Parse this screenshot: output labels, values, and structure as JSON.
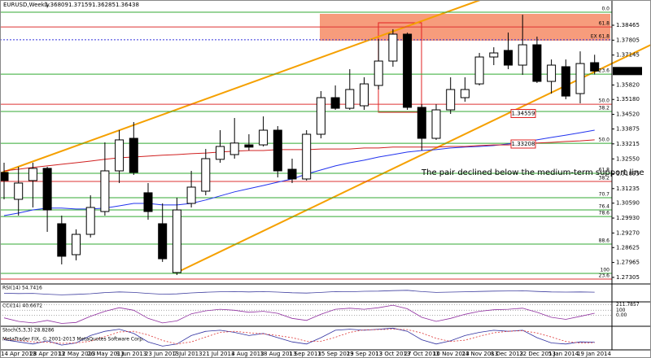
{
  "chart_data": {
    "type": "candlestick",
    "title": "EURUSD,Weekly",
    "categories": [
      "14 Apr 2013",
      null,
      "28 Apr 2013",
      null,
      "12 May 2013",
      null,
      "26 May 2013",
      null,
      "9 Jun 2013",
      null,
      "23 Jun 2013",
      null,
      "7 Jul 2013",
      null,
      "21 Jul 2013",
      null,
      "4 Aug 2013",
      null,
      "18 Aug 2013",
      null,
      "1 Sep 2013",
      null,
      "15 Sep 2013",
      null,
      "29 Sep 2013",
      null,
      "13 Oct 2013",
      null,
      "27 Oct 2013",
      null,
      "10 Nov 2013",
      null,
      "24 Nov 2013",
      null,
      "8 Dec 2013",
      null,
      "22 Dec 2013",
      null,
      "5 Jan 2014",
      null,
      "19 Jan 2014",
      null
    ],
    "candles": [
      [
        1.3195,
        1.3238,
        1.3076,
        1.3159
      ],
      [
        1.3076,
        1.322,
        1.3004,
        1.3148
      ],
      [
        1.3159,
        1.3238,
        1.304,
        1.3213
      ],
      [
        1.3213,
        1.322,
        1.2932,
        1.3029
      ],
      [
        1.2968,
        1.3004,
        1.2788,
        1.2824
      ],
      [
        1.2831,
        1.2943,
        1.2806,
        1.2921
      ],
      [
        1.2921,
        1.3094,
        1.2907,
        1.304
      ],
      [
        1.3022,
        1.3328,
        1.3004,
        1.3202
      ],
      [
        1.3202,
        1.3382,
        1.3148,
        1.3339
      ],
      [
        1.3346,
        1.3418,
        1.3184,
        1.3195
      ],
      [
        1.3105,
        1.3148,
        1.2986,
        1.3022
      ],
      [
        1.2968,
        1.3058,
        1.2799,
        1.2813
      ],
      [
        1.2752,
        1.3083,
        1.2741,
        1.3029
      ],
      [
        1.3058,
        1.3202,
        1.304,
        1.313
      ],
      [
        1.3112,
        1.3299,
        1.3094,
        1.3256
      ],
      [
        1.3253,
        1.3382,
        1.3238,
        1.331
      ],
      [
        1.3274,
        1.3436,
        1.3256,
        1.3325
      ],
      [
        1.3317,
        1.3364,
        1.3292,
        1.3307
      ],
      [
        1.3317,
        1.3443,
        1.331,
        1.3382
      ],
      [
        1.3382,
        1.34,
        1.3173,
        1.3202
      ],
      [
        1.3209,
        1.3256,
        1.3148,
        1.3166
      ],
      [
        1.3166,
        1.3382,
        1.3159,
        1.3364
      ],
      [
        1.3364,
        1.3555,
        1.3346,
        1.3526
      ],
      [
        1.3526,
        1.358,
        1.3472,
        1.3479
      ],
      [
        1.3479,
        1.3652,
        1.3472,
        1.3562
      ],
      [
        1.349,
        1.3616,
        1.3472,
        1.3587
      ],
      [
        1.358,
        1.3785,
        1.3562,
        1.3688
      ],
      [
        1.3688,
        1.3829,
        1.3663,
        1.3807
      ],
      [
        1.3807,
        1.3814,
        1.3472,
        1.3483
      ],
      [
        1.3483,
        1.3497,
        1.3292,
        1.3346
      ],
      [
        1.3346,
        1.3497,
        1.3339,
        1.3472
      ],
      [
        1.3472,
        1.3616,
        1.3454,
        1.3562
      ],
      [
        1.3526,
        1.3616,
        1.3508,
        1.3562
      ],
      [
        1.3587,
        1.3724,
        1.358,
        1.3706
      ],
      [
        1.3706,
        1.3749,
        1.367,
        1.3724
      ],
      [
        1.3735,
        1.3814,
        1.3652,
        1.367
      ],
      [
        1.367,
        1.3893,
        1.3627,
        1.376
      ],
      [
        1.376,
        1.3796,
        1.3591,
        1.3598
      ],
      [
        1.3598,
        1.3695,
        1.3544,
        1.367
      ],
      [
        1.3663,
        1.3695,
        1.3519,
        1.3533
      ],
      [
        1.3544,
        1.3731,
        1.3501,
        1.3677
      ],
      [
        1.36809,
        1.37159,
        1.36285,
        1.36438
      ]
    ],
    "up_color": "#ffffff",
    "down_color": "#000000",
    "ylim": [
      1.2705,
      1.3951
    ],
    "yticks": [
      1.38465,
      1.37805,
      1.37145,
      {
        "value": 1.3582,
        "label": "1.35820"
      },
      {
        "value": 1.3518,
        "label": "1.35180"
      },
      {
        "value": 1.3452,
        "label": "1.34520"
      },
      1.33875,
      1.33215,
      {
        "value": 1.3255,
        "label": "1.32550"
      },
      1.31895,
      1.31235,
      {
        "value": 1.3059,
        "label": "1.30590"
      },
      {
        "value": 1.2993,
        "label": "1.29930"
      },
      {
        "value": 1.2927,
        "label": "1.29270"
      },
      1.28625,
      1.27965,
      1.27305
    ],
    "moving_averages": [
      {
        "color": "#2233ee",
        "values": [
          1.3004,
          1.3015,
          1.3029,
          1.3037,
          1.3037,
          1.3033,
          1.3033,
          1.3037,
          1.3047,
          1.3058,
          1.3058,
          1.3051,
          1.3051,
          1.3058,
          1.3073,
          1.3091,
          1.3109,
          1.3123,
          1.3137,
          1.3152,
          1.3166,
          1.3188,
          1.3206,
          1.3224,
          1.3238,
          1.3249,
          1.3263,
          1.3274,
          1.3285,
          1.3292,
          1.3296,
          1.3303,
          1.3307,
          1.331,
          1.3314,
          1.3321,
          1.3328,
          1.3339,
          1.335,
          1.336,
          1.3371,
          1.3382
        ]
      },
      {
        "color": "#d02020",
        "values": [
          1.3202,
          1.3209,
          1.3217,
          1.3224,
          1.3231,
          1.3238,
          1.3245,
          1.3253,
          1.326,
          1.3263,
          1.3267,
          1.3271,
          1.3274,
          1.3278,
          1.3281,
          1.3285,
          1.3289,
          1.3292,
          1.3292,
          1.3296,
          1.3296,
          1.3296,
          1.3299,
          1.3299,
          1.3299,
          1.3303,
          1.3303,
          1.3307,
          1.3307,
          1.3307,
          1.3307,
          1.331,
          1.331,
          1.3314,
          1.3317,
          1.3317,
          1.3321,
          1.3325,
          1.3328,
          1.3332,
          1.3335,
          1.3339
        ]
      }
    ],
    "fib_levels": [
      {
        "label": "0.0",
        "value": 1.3904,
        "color": "#33aa33"
      },
      {
        "label": "61.8",
        "value": 1.3839,
        "color": "#dd3333"
      },
      {
        "label": "EX 61.8",
        "value": 1.3782,
        "color": "#3333dd",
        "dashed": true
      },
      {
        "label": "23.6",
        "value": 1.363,
        "color": "#33aa33"
      },
      {
        "label": "50.0",
        "value": 1.3497,
        "color": "#dd3333"
      },
      {
        "label": "38.2",
        "value": 1.3465,
        "color": "#33aa33"
      },
      {
        "label": "50.0",
        "value": 1.3324,
        "color": "#33aa33"
      },
      {
        "label": "61.8",
        "value": 1.3191,
        "color": "#33aa33"
      },
      {
        "label": "38.2",
        "value": 1.3155,
        "color": "#dd3333"
      },
      {
        "label": "70.7",
        "value": 1.3083,
        "color": "#33aa33"
      },
      {
        "label": "76.4",
        "value": 1.3029,
        "color": "#33aa33"
      },
      {
        "label": "78.6",
        "value": 1.3,
        "color": "#33aa33"
      },
      {
        "label": "88.6",
        "value": 1.2878,
        "color": "#33aa33"
      },
      {
        "label": "100",
        "value": 1.2748,
        "color": "#33aa33"
      },
      {
        "label": "23.6",
        "value": 1.2723,
        "color": "#dd3333"
      }
    ],
    "price_boxes": [
      1.34559,
      1.33208
    ],
    "annotation": "The pair declined below the medium-term support line",
    "indicators": [
      {
        "type": "line",
        "title": "RSI(14) 54.7416",
        "ylim": [
          0,
          100
        ],
        "series": [
          {
            "color": "#4040a0",
            "values": [
              48,
              46,
              47,
              42,
              38,
              41,
              45,
              52,
              56,
              53,
              47,
              42,
              44,
              50,
              54,
              57,
              58,
              56,
              58,
              55,
              51,
              49,
              53,
              58,
              57,
              60,
              61,
              64,
              66,
              58,
              53,
              55,
              57,
              59,
              61,
              62,
              63,
              59,
              56,
              55,
              56,
              54.7416
            ]
          }
        ]
      },
      {
        "type": "line",
        "title": "CCI(14) 40.6672",
        "ylim": [
          -200,
          250
        ],
        "yticks": [
          211.7857,
          100,
          {
            "value": 0,
            "label": "0.00"
          }
        ],
        "series": [
          {
            "color": "#9030a0",
            "values": [
              -50,
              -120,
              -150,
              -100,
              -160,
              -140,
              -20,
              80,
              150,
              100,
              -60,
              -150,
              -110,
              30,
              90,
              120,
              100,
              60,
              80,
              40,
              -60,
              -100,
              20,
              120,
              140,
              120,
              150,
              200,
              130,
              -40,
              -120,
              -60,
              20,
              80,
              110,
              120,
              140,
              60,
              -40,
              -80,
              -20,
              40.6672
            ]
          }
        ]
      },
      {
        "type": "line",
        "title": "Stoch(5,3,3) 28.8286",
        "ylim": [
          0,
          100
        ],
        "series": [
          {
            "color": "#3030a0",
            "values": [
              40,
              30,
              20,
              35,
              15,
              25,
              60,
              80,
              90,
              70,
              30,
              10,
              20,
              60,
              80,
              85,
              75,
              60,
              70,
              50,
              30,
              20,
              50,
              85,
              90,
              85,
              90,
              95,
              80,
              40,
              20,
              35,
              60,
              75,
              85,
              80,
              85,
              50,
              25,
              20,
              30,
              28.8286
            ]
          },
          {
            "color": "#dd3333",
            "dashed": true,
            "values": [
              45,
              37,
              30,
              28,
              23,
              25,
              33,
              55,
              77,
              80,
              63,
              37,
              20,
              30,
              53,
              75,
              80,
              73,
              68,
              60,
              50,
              33,
              33,
              52,
              75,
              87,
              88,
              90,
              88,
              72,
              47,
              32,
              38,
              57,
              73,
              80,
              83,
              72,
              53,
              32,
              25,
              26
            ]
          }
        ]
      }
    ],
    "watermark": "MetaTrader FIX, © 2001-2013 MetaQuotes Software Corp."
  }
}
